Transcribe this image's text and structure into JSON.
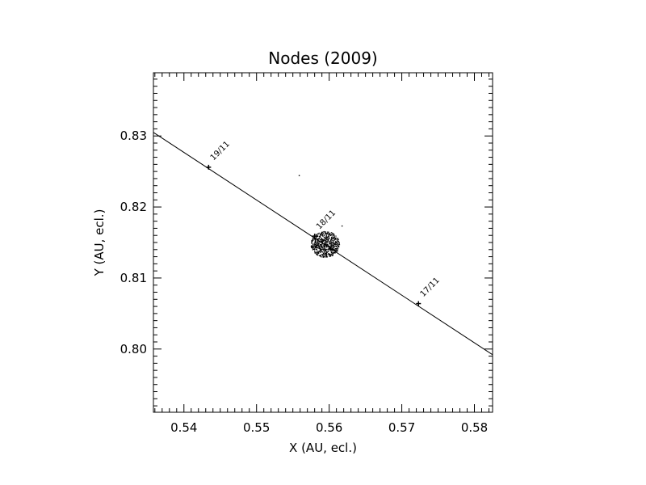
{
  "chart_data": {
    "type": "scatter",
    "title": "Nodes (2009)",
    "xlabel": "X (AU, ecl.)",
    "ylabel": "Y (AU, ecl.)",
    "xlim": [
      0.5358,
      0.5825
    ],
    "ylim": [
      0.7911,
      0.8389
    ],
    "x_ticks": [
      0.54,
      0.55,
      0.56,
      0.57,
      0.58
    ],
    "x_tick_labels": [
      "0.54",
      "0.55",
      "0.56",
      "0.57",
      "0.58"
    ],
    "y_ticks": [
      0.8,
      0.81,
      0.82,
      0.83
    ],
    "y_tick_labels": [
      "0.80",
      "0.81",
      "0.82",
      "0.83"
    ],
    "grid": false,
    "legend": "none",
    "earth_orbit_line": {
      "x": [
        0.5358,
        0.5825
      ],
      "y": [
        0.8305,
        0.7992
      ]
    },
    "date_markers": [
      {
        "label": "19/11",
        "x": 0.5434,
        "y": 0.8256
      },
      {
        "label": "18/11",
        "x": 0.558,
        "y": 0.8159
      },
      {
        "label": "17/11",
        "x": 0.5723,
        "y": 0.8064
      }
    ],
    "node_cluster": {
      "center_x": 0.5594,
      "center_y": 0.8148,
      "outliers": [
        {
          "x": 0.5558,
          "y": 0.8245
        },
        {
          "x": 0.5617,
          "y": 0.8174
        }
      ]
    },
    "colors": {
      "foreground": "#000000",
      "background": "#ffffff"
    }
  }
}
